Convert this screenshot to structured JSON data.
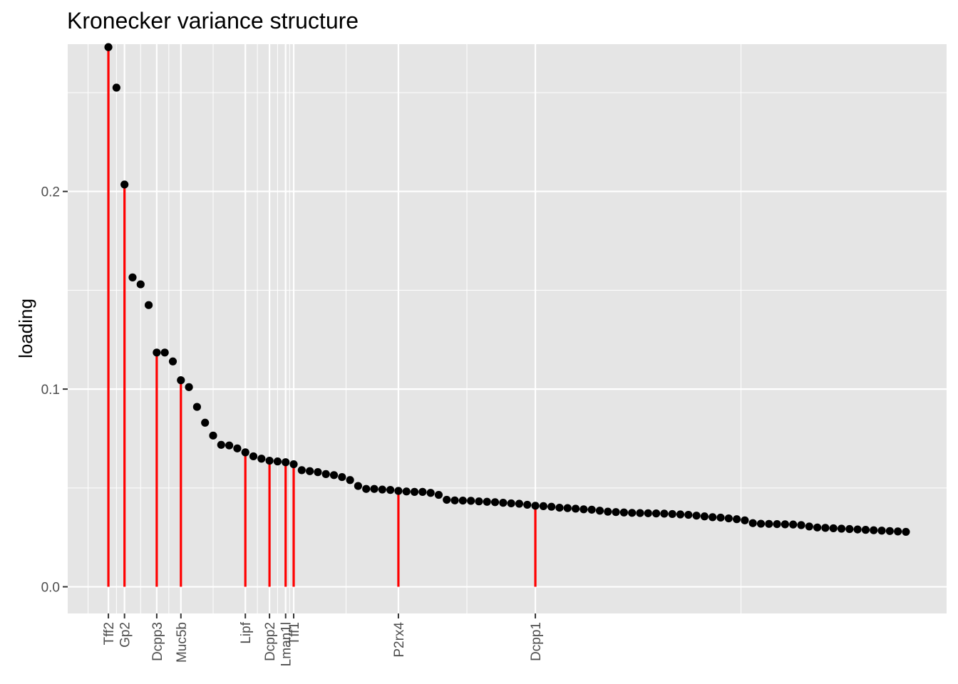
{
  "chart_data": {
    "type": "scatter",
    "title": "Kronecker variance structure",
    "xlabel": "",
    "ylabel": "loading",
    "ylim": [
      -0.0135,
      0.2745
    ],
    "xlim": [
      -4.05,
      105.05
    ],
    "y_ticks": [
      "0.0",
      "0.1",
      "0.2"
    ],
    "y_tick_values": [
      0.0,
      0.1,
      0.2
    ],
    "grid": true,
    "point_color": "#000000",
    "highlight_color": "#ff0000",
    "panel_background": "#e5e5e5",
    "gridline_color": "#ffffff",
    "x": [
      1,
      2,
      3,
      4,
      5,
      6,
      7,
      8,
      9,
      10,
      11,
      12,
      13,
      14,
      15,
      16,
      17,
      18,
      19,
      20,
      21,
      22,
      23,
      24,
      25,
      26,
      27,
      28,
      29,
      30,
      31,
      32,
      33,
      34,
      35,
      36,
      37,
      38,
      39,
      40,
      41,
      42,
      43,
      44,
      45,
      46,
      47,
      48,
      49,
      50,
      51,
      52,
      53,
      54,
      55,
      56,
      57,
      58,
      59,
      60,
      61,
      62,
      63,
      64,
      65,
      66,
      67,
      68,
      69,
      70,
      71,
      72,
      73,
      74,
      75,
      76,
      77,
      78,
      79,
      80,
      81,
      82,
      83,
      84,
      85,
      86,
      87,
      88,
      89,
      90,
      91,
      92,
      93,
      94,
      95,
      96,
      97,
      98,
      99,
      100
    ],
    "values": [
      0.273,
      0.2525,
      0.2035,
      0.1565,
      0.153,
      0.1425,
      0.1185,
      0.1185,
      0.114,
      0.1045,
      0.101,
      0.091,
      0.083,
      0.0765,
      0.0718,
      0.0715,
      0.07,
      0.068,
      0.066,
      0.0648,
      0.0638,
      0.0634,
      0.063,
      0.062,
      0.059,
      0.0585,
      0.058,
      0.057,
      0.0565,
      0.0555,
      0.054,
      0.051,
      0.0495,
      0.0495,
      0.0492,
      0.049,
      0.0485,
      0.0482,
      0.048,
      0.048,
      0.0475,
      0.0465,
      0.044,
      0.0437,
      0.0436,
      0.0435,
      0.0432,
      0.043,
      0.0428,
      0.0425,
      0.0422,
      0.042,
      0.0415,
      0.041,
      0.0408,
      0.0405,
      0.04,
      0.0398,
      0.0395,
      0.0392,
      0.039,
      0.0385,
      0.038,
      0.0378,
      0.0376,
      0.0374,
      0.0373,
      0.0372,
      0.0371,
      0.037,
      0.0368,
      0.0366,
      0.0364,
      0.036,
      0.0356,
      0.0352,
      0.035,
      0.0346,
      0.0342,
      0.0336,
      0.0322,
      0.0319,
      0.0318,
      0.0317,
      0.0316,
      0.0315,
      0.0312,
      0.0305,
      0.03,
      0.0298,
      0.0296,
      0.0294,
      0.0292,
      0.029,
      0.0288,
      0.0286,
      0.0284,
      0.0282,
      0.028,
      0.0278
    ],
    "highlighted": [
      {
        "label": "Tff2",
        "x": 1,
        "value": 0.273
      },
      {
        "label": "Gp2",
        "x": 3,
        "value": 0.2035
      },
      {
        "label": "Dcpp3",
        "x": 7,
        "value": 0.1185
      },
      {
        "label": "Muc5b",
        "x": 10,
        "value": 0.1045
      },
      {
        "label": "Lipf",
        "x": 18,
        "value": 0.068
      },
      {
        "label": "Dcpp2",
        "x": 21,
        "value": 0.0638
      },
      {
        "label": "Lman1l",
        "x": 23,
        "value": 0.063
      },
      {
        "label": "Tff1",
        "x": 24,
        "value": 0.062
      },
      {
        "label": "P2rx4",
        "x": 37,
        "value": 0.0485
      },
      {
        "label": "Dcpp1",
        "x": 54,
        "value": 0.041
      }
    ]
  }
}
